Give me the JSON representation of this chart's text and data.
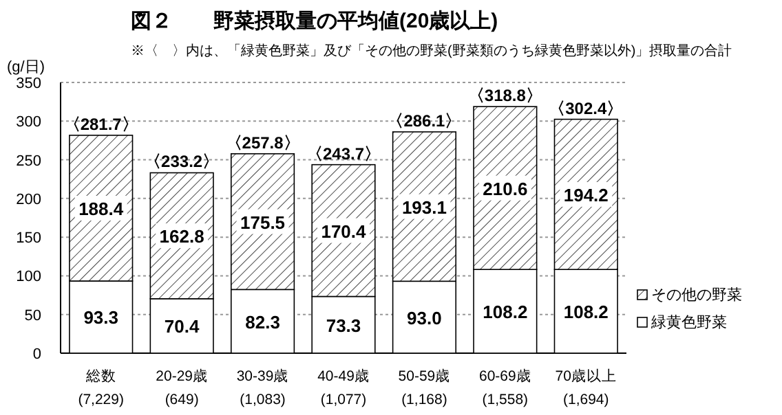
{
  "chart_data": {
    "type": "bar",
    "title": "図２　　野菜摂取量の平均値(20歳以上)",
    "subtitle": "※〈　〉内は、「緑黄色野菜」及び「その他の野菜(野菜類のうち緑黄色野菜以外)」摂取量の合計",
    "ylabel": "(g/日)",
    "categories": [
      "総数\n(7,229)",
      "20-29歳\n(649)",
      "30-39歳\n(1,083)",
      "40-49歳\n(1,077)",
      "50-59歳\n(1,168)",
      "60-69歳\n(1,558)",
      "70歳以上\n(1,694)"
    ],
    "stacked": true,
    "series": [
      {
        "name": "緑黄色野菜",
        "color": "#ffffff",
        "values": [
          93.3,
          70.4,
          82.3,
          73.3,
          93.0,
          108.2,
          108.2
        ],
        "value_labels": [
          "93.3",
          "70.4",
          "82.3",
          "73.3",
          "93.0",
          "108.2",
          "108.2"
        ]
      },
      {
        "name": "その他の野菜",
        "color": "#000000",
        "values": [
          188.4,
          162.8,
          175.5,
          170.4,
          193.1,
          210.6,
          194.2
        ],
        "value_labels": [
          "188.4",
          "162.8",
          "175.5",
          "170.4",
          "193.1",
          "210.6",
          "194.2"
        ]
      }
    ],
    "totals": [
      "〈281.7〉",
      "〈233.2〉",
      "〈257.8〉",
      "〈243.7〉",
      "〈286.1〉",
      "〈318.8〉",
      "〈302.4〉"
    ],
    "ylim": [
      0,
      350
    ],
    "yticks": [
      0,
      50,
      100,
      150,
      200,
      250,
      300,
      350
    ],
    "grid": "y",
    "legend": "right"
  }
}
